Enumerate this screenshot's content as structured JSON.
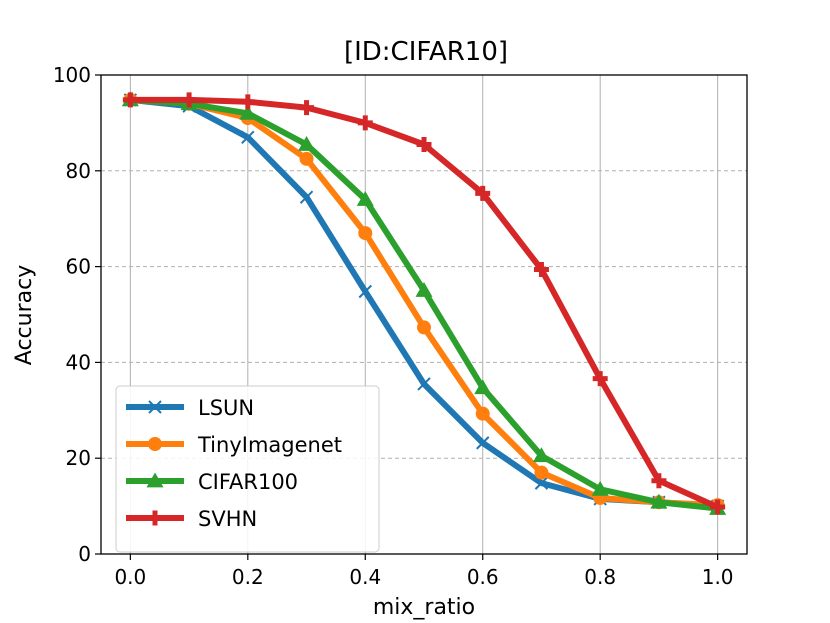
{
  "chart_data": {
    "type": "line",
    "title": "[ID:CIFAR10]",
    "xlabel": "mix_ratio",
    "ylabel": "Accuracy",
    "xlim": [
      -0.05,
      1.05
    ],
    "ylim": [
      0,
      100
    ],
    "xticks": [
      0.0,
      0.2,
      0.4,
      0.6,
      0.8,
      1.0
    ],
    "xtick_labels": [
      "0.0",
      "0.2",
      "0.4",
      "0.6",
      "0.8",
      "1.0"
    ],
    "yticks": [
      0,
      20,
      40,
      60,
      80,
      100
    ],
    "ytick_labels": [
      "0",
      "20",
      "40",
      "60",
      "80",
      "100"
    ],
    "grid": true,
    "legend_position": "lower-left",
    "x": [
      0.0,
      0.1,
      0.2,
      0.3,
      0.4,
      0.5,
      0.6,
      0.7,
      0.8,
      0.9,
      1.0
    ],
    "series": [
      {
        "name": "LSUN",
        "color": "#1f77b4",
        "marker": "x",
        "values": [
          94.8,
          93.5,
          87.0,
          74.5,
          54.8,
          35.5,
          23.2,
          14.8,
          11.5,
          10.8,
          10.0
        ]
      },
      {
        "name": "TinyImagenet",
        "color": "#ff7f0e",
        "marker": "circle",
        "values": [
          94.8,
          94.0,
          91.0,
          82.5,
          67.0,
          47.3,
          29.3,
          17.0,
          11.7,
          10.8,
          10.2
        ]
      },
      {
        "name": "CIFAR100",
        "color": "#2ca02c",
        "marker": "triangle",
        "values": [
          94.8,
          94.0,
          92.0,
          85.5,
          74.0,
          55.0,
          34.7,
          20.5,
          13.5,
          10.8,
          9.5
        ]
      },
      {
        "name": "SVHN",
        "color": "#d62728",
        "marker": "plus",
        "values": [
          94.8,
          94.8,
          94.4,
          93.2,
          90.0,
          85.5,
          75.3,
          59.4,
          36.6,
          15.3,
          9.8
        ]
      }
    ]
  }
}
